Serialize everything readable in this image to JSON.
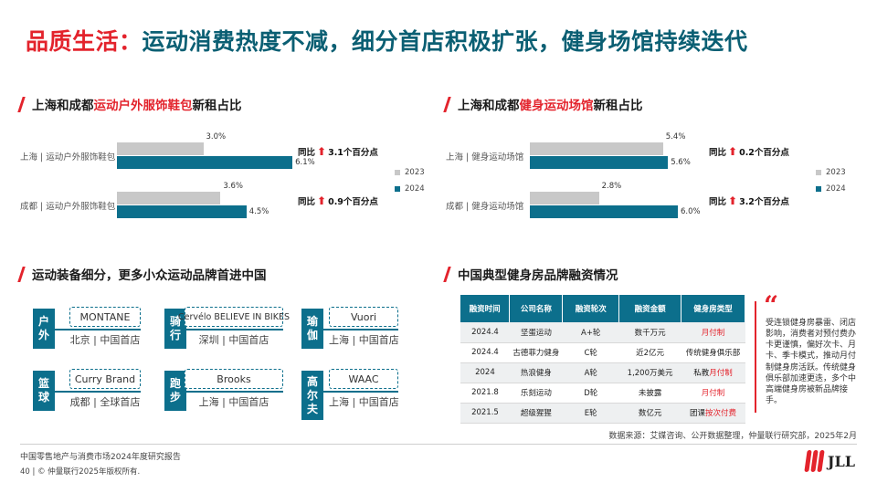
{
  "title": {
    "part1": "品质生活：",
    "part2": "运动消费热度不减，细分首店积极扩张，健身场馆持续迭代"
  },
  "section1": {
    "prefix": "上海和成都",
    "highlight": "运动户外服饰鞋包",
    "suffix": "新租占比"
  },
  "section2": {
    "prefix": "上海和成都",
    "highlight": "健身运动场馆",
    "suffix": "新租占比"
  },
  "section3": {
    "title": "运动装备细分，更多小众运动品牌首进中国"
  },
  "section4": {
    "title": "中国典型健身房品牌融资情况"
  },
  "chart_data": [
    {
      "type": "bar",
      "categories": [
        "上海 | 运动户外服饰鞋包",
        "成都 | 运动户外服饰鞋包"
      ],
      "series": [
        {
          "name": "2023",
          "values": [
            3.0,
            3.6
          ],
          "labels": [
            "3.0%",
            "3.6%"
          ]
        },
        {
          "name": "2024",
          "values": [
            6.1,
            4.5
          ],
          "labels": [
            "6.1%",
            "4.5%"
          ]
        }
      ],
      "yoy": [
        "3.1个百分点",
        "0.9个百分点"
      ],
      "yoy_prefix": "同比"
    },
    {
      "type": "bar",
      "categories": [
        "上海 | 健身运动场馆",
        "成都 | 健身运动场馆"
      ],
      "series": [
        {
          "name": "2023",
          "values": [
            5.4,
            2.8
          ],
          "labels": [
            "5.4%",
            "2.8%"
          ]
        },
        {
          "name": "2024",
          "values": [
            5.6,
            6.0
          ],
          "labels": [
            "5.6%",
            "6.0%"
          ]
        }
      ],
      "yoy": [
        "0.2个百分点",
        "3.2个百分点"
      ],
      "yoy_prefix": "同比"
    }
  ],
  "legend": {
    "y2023": "2023",
    "y2024": "2024"
  },
  "colors": {
    "accent": "#e3232c",
    "teal": "#0c6f8c",
    "grey": "#c8c8c8"
  },
  "brands": [
    {
      "tag": "户外",
      "name": "MONTANE",
      "loc": "北京 | 中国首店"
    },
    {
      "tag": "骑行",
      "name": "Cervélo BELIEVE IN BIKES",
      "loc": "深圳 | 中国首店"
    },
    {
      "tag": "瑜伽",
      "name": "Vuori",
      "loc": "上海 | 中国首店"
    },
    {
      "tag": "篮球",
      "name": "Curry Brand",
      "loc": "成都 | 全球首店"
    },
    {
      "tag": "跑步",
      "name": "Brooks",
      "loc": "上海 | 中国首店"
    },
    {
      "tag": "高尔夫",
      "name": "WAAC",
      "loc": "上海 | 中国首店"
    }
  ],
  "funding_table": {
    "headers": [
      "融资时间",
      "公司名称",
      "融资轮次",
      "融资金额",
      "健身房类型"
    ],
    "rows": [
      [
        "2024.4",
        "坚蛋运动",
        "A+轮",
        "数千万元",
        "",
        "月付制"
      ],
      [
        "2024.4",
        "古德菲力健身",
        "C轮",
        "近2亿元",
        "传统健身俱乐部",
        ""
      ],
      [
        "2024",
        "热浪健身",
        "A轮",
        "1,200万美元",
        "私教",
        "月付制"
      ],
      [
        "2021.8",
        "乐刻运动",
        "D轮",
        "未披露",
        "",
        "月付制"
      ],
      [
        "2021.5",
        "超级猩猩",
        "E轮",
        "数亿元",
        "团课",
        "按次付费"
      ]
    ]
  },
  "quote": {
    "mark": "“",
    "text": "受连锁健身房暴雷、闭店影响，消费者对预付费办卡更谨慎，偏好次卡、月卡、季卡模式，推动月付制健身房活跃。传统健身俱乐部加速更迭，多个中高端健身房被新品牌接手。"
  },
  "source": "数据来源：艾媒咨询、公开数据整理，仲量联行研究部，2025年2月",
  "footer": {
    "report": "中国零售地产与消费市场2024年度研究报告",
    "page": "40",
    "copyright": "© 仲量联行2025年版权所有."
  },
  "logo": {
    "text": "JLL",
    "icon": "jll-logo-icon"
  }
}
